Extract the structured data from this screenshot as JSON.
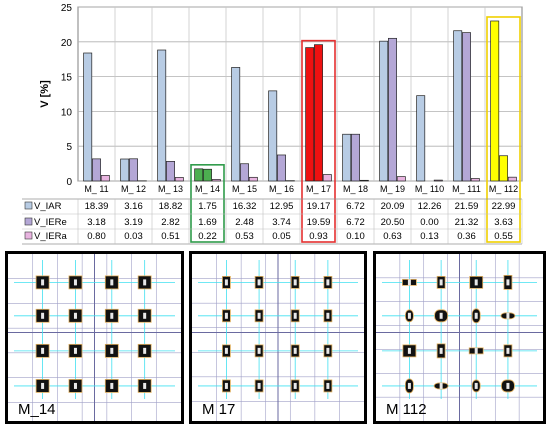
{
  "chart_data": {
    "type": "bar",
    "ylabel": "V [%]",
    "ylim": [
      0,
      25
    ],
    "yticks": [
      0,
      5,
      10,
      15,
      20,
      25
    ],
    "grid": true,
    "legend": "table-left",
    "categories": [
      "M_ 11",
      "M_ 12",
      "M_ 13",
      "M_ 14",
      "M_ 15",
      "M_ 16",
      "M_ 17",
      "M_ 18",
      "M_ 19",
      "M_ 110",
      "M_ 111",
      "M_ 112"
    ],
    "series": [
      {
        "name": "V_IAR",
        "color": "#b8cce4",
        "values": [
          18.39,
          3.16,
          18.82,
          1.75,
          16.32,
          12.95,
          19.17,
          6.72,
          20.09,
          12.26,
          21.59,
          22.99
        ]
      },
      {
        "name": "V_IERe",
        "color": "#b4a7d6",
        "values": [
          3.18,
          3.19,
          2.82,
          1.69,
          2.48,
          3.74,
          19.59,
          6.72,
          20.5,
          0.0,
          21.32,
          3.63
        ]
      },
      {
        "name": "V_IERa",
        "color": "#e8b4e0",
        "values": [
          0.8,
          0.03,
          0.51,
          0.22,
          0.53,
          0.05,
          0.93,
          0.1,
          0.63,
          0.13,
          0.36,
          0.55
        ]
      }
    ],
    "table": {
      "rows": [
        [
          "18.39",
          "3.16",
          "18.82",
          "1.75",
          "16.32",
          "12.95",
          "19.17",
          "6.72",
          "20.09",
          "12.26",
          "21.59",
          "22.99"
        ],
        [
          "3.18",
          "3.19",
          "2.82",
          "1.69",
          "2.48",
          "3.74",
          "19.59",
          "6.72",
          "20.50",
          "0.00",
          "21.32",
          "3.63"
        ],
        [
          "0.80",
          "0.03",
          "0.51",
          "0.22",
          "0.53",
          "0.05",
          "0.93",
          "0.10",
          "0.63",
          "0.13",
          "0.36",
          "0.55"
        ]
      ]
    },
    "highlights": [
      {
        "category": "M_ 14",
        "color": "#2e9b4a",
        "fill": "#4caf50"
      },
      {
        "category": "M_ 17",
        "color": "#e53030",
        "fill": "#ee1111"
      },
      {
        "category": "M_ 112",
        "color": "#f0d000",
        "fill": "#ffff00"
      }
    ]
  },
  "panels": [
    {
      "label": "M_14",
      "color": "#2e9b4a"
    },
    {
      "label": "M  17",
      "color": "#e53030"
    },
    {
      "label": "M  112",
      "color": "#f0d000"
    }
  ],
  "colors": {
    "grid_line": "#a0a0c8",
    "cyan_line": "#40e0f0",
    "cell_dark": "#111111",
    "cell_border": "#e0b060"
  }
}
